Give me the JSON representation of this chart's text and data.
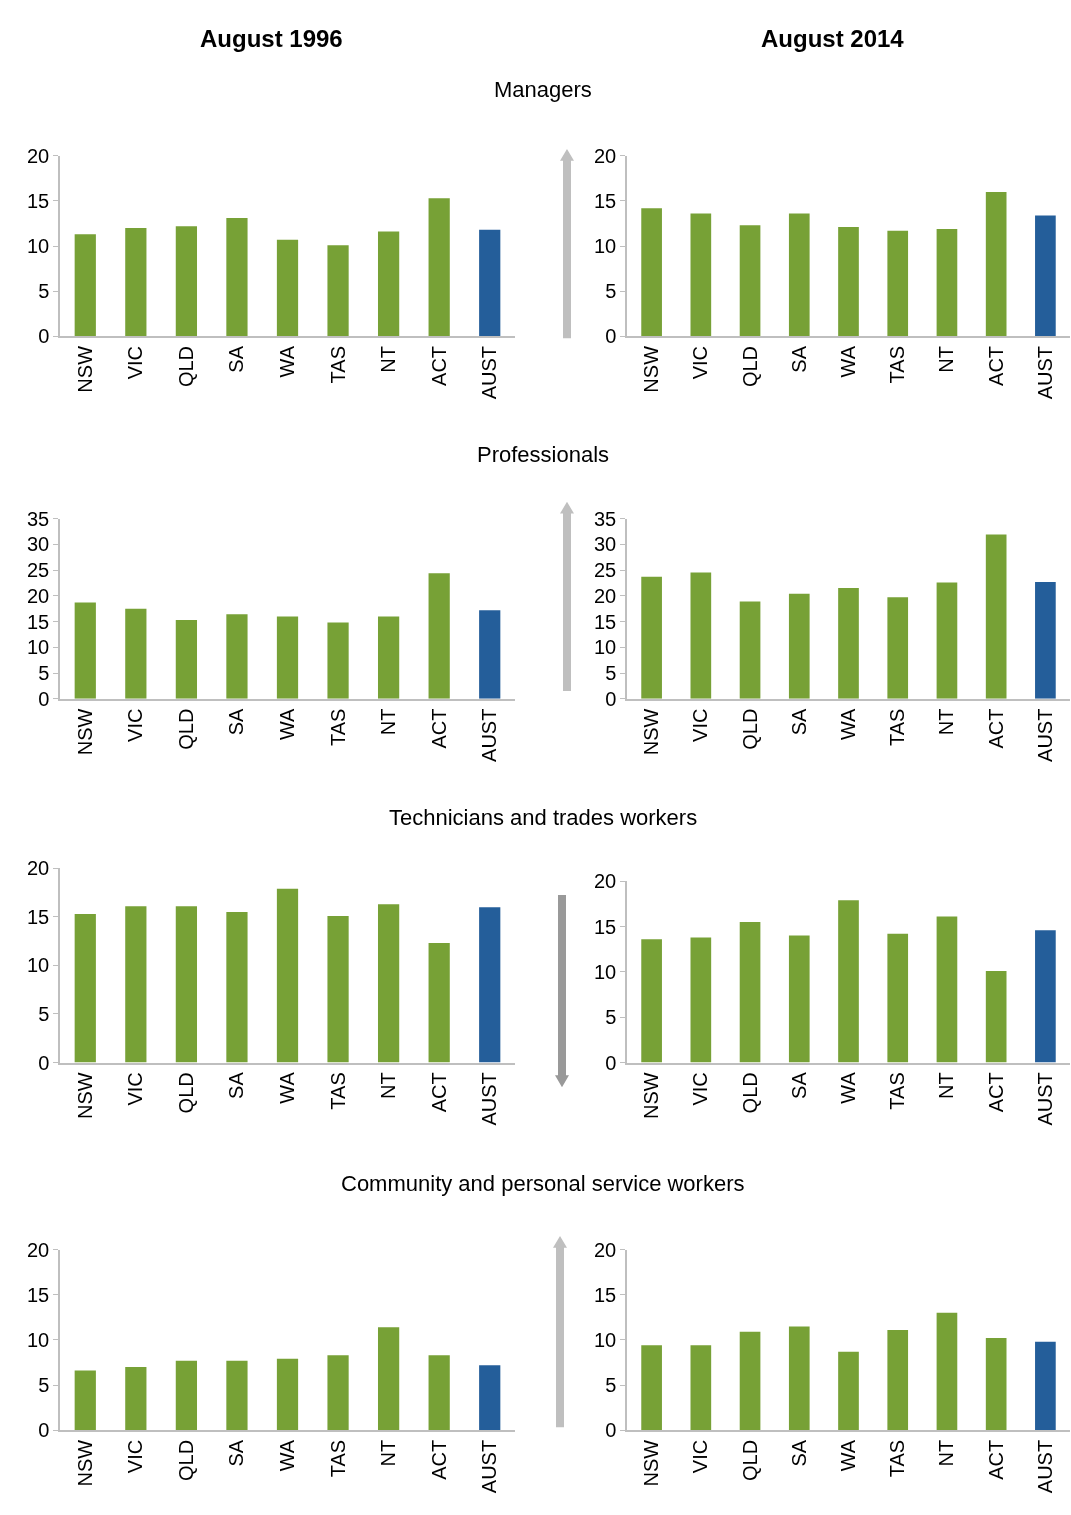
{
  "chart_data": [
    {
      "type": "bar",
      "title": "August 1996",
      "subtitle": "Managers",
      "categories": [
        "NSW",
        "VIC",
        "QLD",
        "SA",
        "WA",
        "TAS",
        "NT",
        "ACT",
        "AUST"
      ],
      "values": [
        11.3,
        12.0,
        12.2,
        13.1,
        10.7,
        10.1,
        11.6,
        15.3,
        11.8
      ],
      "colors": [
        "#77a136",
        "#77a136",
        "#77a136",
        "#77a136",
        "#77a136",
        "#77a136",
        "#77a136",
        "#77a136",
        "#245e9a"
      ],
      "ylim": [
        0,
        20
      ],
      "yticks": [
        0,
        5,
        10,
        15,
        20
      ]
    },
    {
      "type": "bar",
      "title": "August 2014",
      "categories": [
        "NSW",
        "VIC",
        "QLD",
        "SA",
        "WA",
        "TAS",
        "NT",
        "ACT",
        "AUST"
      ],
      "values": [
        14.2,
        13.6,
        12.3,
        13.6,
        12.1,
        11.7,
        11.9,
        16.0,
        13.4
      ],
      "colors": [
        "#77a136",
        "#77a136",
        "#77a136",
        "#77a136",
        "#77a136",
        "#77a136",
        "#77a136",
        "#77a136",
        "#245e9a"
      ],
      "ylim": [
        0,
        20
      ],
      "yticks": [
        0,
        5,
        10,
        15,
        20
      ]
    },
    {
      "type": "bar",
      "subtitle": "Professionals",
      "categories": [
        "NSW",
        "VIC",
        "QLD",
        "SA",
        "WA",
        "TAS",
        "NT",
        "ACT",
        "AUST"
      ],
      "values": [
        18.7,
        17.5,
        15.3,
        16.4,
        16.0,
        14.8,
        16.0,
        24.4,
        17.2
      ],
      "colors": [
        "#77a136",
        "#77a136",
        "#77a136",
        "#77a136",
        "#77a136",
        "#77a136",
        "#77a136",
        "#77a136",
        "#245e9a"
      ],
      "ylim": [
        0,
        35
      ],
      "yticks": [
        0,
        5,
        10,
        15,
        20,
        25,
        30,
        35
      ]
    },
    {
      "type": "bar",
      "categories": [
        "NSW",
        "VIC",
        "QLD",
        "SA",
        "WA",
        "TAS",
        "NT",
        "ACT",
        "AUST"
      ],
      "values": [
        23.7,
        24.5,
        18.9,
        20.4,
        21.5,
        19.7,
        22.6,
        31.9,
        22.7
      ],
      "colors": [
        "#77a136",
        "#77a136",
        "#77a136",
        "#77a136",
        "#77a136",
        "#77a136",
        "#77a136",
        "#77a136",
        "#245e9a"
      ],
      "ylim": [
        0,
        35
      ],
      "yticks": [
        0,
        5,
        10,
        15,
        20,
        25,
        30,
        35
      ]
    },
    {
      "type": "bar",
      "subtitle": "Technicians and trades workers",
      "categories": [
        "NSW",
        "VIC",
        "QLD",
        "SA",
        "WA",
        "TAS",
        "NT",
        "ACT",
        "AUST"
      ],
      "values": [
        15.3,
        16.1,
        16.1,
        15.5,
        17.9,
        15.1,
        16.3,
        12.3,
        16.0
      ],
      "colors": [
        "#77a136",
        "#77a136",
        "#77a136",
        "#77a136",
        "#77a136",
        "#77a136",
        "#77a136",
        "#77a136",
        "#245e9a"
      ],
      "ylim": [
        0,
        20
      ],
      "yticks": [
        0,
        5,
        10,
        15,
        20
      ]
    },
    {
      "type": "bar",
      "categories": [
        "NSW",
        "VIC",
        "QLD",
        "SA",
        "WA",
        "TAS",
        "NT",
        "ACT",
        "AUST"
      ],
      "values": [
        13.6,
        13.8,
        15.5,
        14.0,
        17.9,
        14.2,
        16.1,
        10.1,
        14.6
      ],
      "colors": [
        "#77a136",
        "#77a136",
        "#77a136",
        "#77a136",
        "#77a136",
        "#77a136",
        "#77a136",
        "#77a136",
        "#245e9a"
      ],
      "ylim": [
        0,
        20
      ],
      "yticks": [
        0,
        5,
        10,
        15,
        20
      ]
    },
    {
      "type": "bar",
      "subtitle": "Community and personal service workers",
      "categories": [
        "NSW",
        "VIC",
        "QLD",
        "SA",
        "WA",
        "TAS",
        "NT",
        "ACT",
        "AUST"
      ],
      "values": [
        6.6,
        7.0,
        7.7,
        7.7,
        7.9,
        8.3,
        11.4,
        8.3,
        7.2
      ],
      "colors": [
        "#77a136",
        "#77a136",
        "#77a136",
        "#77a136",
        "#77a136",
        "#77a136",
        "#77a136",
        "#77a136",
        "#245e9a"
      ],
      "ylim": [
        0,
        20
      ],
      "yticks": [
        0,
        5,
        10,
        15,
        20
      ]
    },
    {
      "type": "bar",
      "categories": [
        "NSW",
        "VIC",
        "QLD",
        "SA",
        "WA",
        "TAS",
        "NT",
        "ACT",
        "AUST"
      ],
      "values": [
        9.4,
        9.4,
        10.9,
        11.5,
        8.7,
        11.1,
        13.0,
        10.2,
        9.8
      ],
      "colors": [
        "#77a136",
        "#77a136",
        "#77a136",
        "#77a136",
        "#77a136",
        "#77a136",
        "#77a136",
        "#77a136",
        "#245e9a"
      ],
      "ylim": [
        0,
        20
      ],
      "yticks": [
        0,
        5,
        10,
        15,
        20
      ]
    }
  ]
}
